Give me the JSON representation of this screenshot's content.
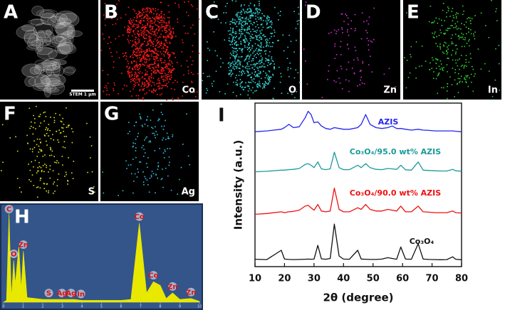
{
  "panels": [
    {
      "letter": "A",
      "label": "STEM 1 μm",
      "color": "#d0d0d0"
    },
    {
      "letter": "B",
      "label": "Co",
      "color": "#ff1a1a"
    },
    {
      "letter": "C",
      "label": "O",
      "color": "#33d0d0"
    },
    {
      "letter": "D",
      "label": "Zn",
      "color": "#d030d0"
    },
    {
      "letter": "E",
      "label": "In",
      "color": "#30d030"
    },
    {
      "letter": "F",
      "label": "S",
      "color": "#e0e020"
    },
    {
      "letter": "G",
      "label": "Ag",
      "color": "#30c0e0"
    }
  ],
  "chart_data": [
    {
      "type": "area",
      "title": "H",
      "color": "#e8e800",
      "x": [
        0,
        0.15,
        0.28,
        0.4,
        0.52,
        0.6,
        0.78,
        0.9,
        1.01,
        1.2,
        2.0,
        2.3,
        2.98,
        3.3,
        3.6,
        4.0,
        5.0,
        6.0,
        6.5,
        6.93,
        7.3,
        7.65,
        8.0,
        8.3,
        8.63,
        9.0,
        9.57,
        10
      ],
      "values": [
        0,
        2,
        95,
        5,
        45,
        20,
        60,
        15,
        55,
        5,
        3,
        3,
        3,
        3,
        3,
        2,
        2,
        2,
        3,
        85,
        10,
        22,
        18,
        4,
        10,
        3,
        4,
        1
      ],
      "xlim": [
        0,
        10
      ],
      "xticks": [
        0,
        1,
        2,
        3,
        4,
        5,
        6,
        7,
        8,
        9,
        10
      ],
      "ylim": [
        0,
        100
      ],
      "annotations": [
        {
          "text": "C",
          "x": 0.28
        },
        {
          "text": "O",
          "x": 0.52
        },
        {
          "text": "Zn",
          "x": 1.01
        },
        {
          "text": "S",
          "x": 2.31
        },
        {
          "text": "Ag",
          "x": 2.98
        },
        {
          "text": "Ag",
          "x": 3.45
        },
        {
          "text": "In",
          "x": 3.95
        },
        {
          "text": "Co",
          "x": 6.93
        },
        {
          "text": "Co",
          "x": 7.65
        },
        {
          "text": "Zn",
          "x": 8.63
        },
        {
          "text": "Zn",
          "x": 9.57
        }
      ]
    },
    {
      "type": "line",
      "title": "I",
      "xlabel": "2θ (degree)",
      "ylabel": "Intensity (a.u.)",
      "xlim": [
        10,
        80
      ],
      "xticks": [
        10,
        20,
        30,
        40,
        50,
        60,
        70,
        80
      ],
      "ylim": [
        0,
        100
      ],
      "x": [
        10,
        14,
        18.9,
        20,
        21.5,
        23,
        25,
        27,
        28,
        29,
        30,
        31.3,
        32.5,
        34,
        35.5,
        36.9,
        38.5,
        40,
        42,
        44.8,
        46,
        47.5,
        49,
        51,
        53,
        55,
        56.5,
        58,
        59.4,
        61,
        63,
        65.3,
        67,
        69,
        71,
        73,
        75,
        77,
        78,
        80
      ],
      "series": [
        {
          "name": "AZIS",
          "color": "#2424ee",
          "values": [
            82.5,
            83,
            84,
            85,
            87,
            85,
            85.5,
            91,
            95,
            93,
            88,
            88.5,
            86,
            84.5,
            84,
            85,
            84.5,
            84,
            84,
            85,
            87,
            93,
            87,
            85,
            84.5,
            85,
            86,
            84.5,
            84.5,
            84,
            83.5,
            84,
            83.5,
            83.3,
            83,
            83,
            83,
            83,
            82.8,
            82.5
          ]
        },
        {
          "name": "Co₃O₄/95.0 wt% AZIS",
          "color": "#1a9a9a",
          "values": [
            58,
            58.3,
            59,
            59,
            59.3,
            59.5,
            60,
            62.5,
            63,
            62,
            60.5,
            64,
            59.8,
            59.3,
            59.8,
            70,
            60.5,
            59.3,
            59.3,
            62,
            60.5,
            63,
            60.5,
            59.5,
            59.3,
            60,
            59.8,
            59.5,
            62,
            59.2,
            59,
            64,
            59,
            58.8,
            58.6,
            58.5,
            58.5,
            59.5,
            58.6,
            58.3
          ]
        },
        {
          "name": "Co₃O₄/90.0 wt% AZIS",
          "color": "#ee1111",
          "values": [
            32,
            32.5,
            33.5,
            33,
            33.5,
            33.8,
            34.5,
            37,
            37.5,
            36,
            34.5,
            38,
            34,
            33.5,
            34,
            48,
            35,
            33.5,
            33.5,
            36,
            35,
            38,
            35,
            34,
            34,
            35,
            34.5,
            34,
            37,
            33.5,
            33.5,
            37,
            33.5,
            33.3,
            33,
            33,
            33,
            34,
            33,
            32.8
          ]
        },
        {
          "name": "Co₃O₄",
          "color": "#111111",
          "values": [
            4.5,
            4.3,
            10,
            4.6,
            4.4,
            4.3,
            4.4,
            4.5,
            4.6,
            4.5,
            4.6,
            13,
            4.8,
            4.5,
            5,
            26,
            6.5,
            4.6,
            4.5,
            10,
            4.6,
            4.5,
            4.4,
            4.4,
            4.6,
            5.5,
            5,
            4.5,
            12,
            4.6,
            4.5,
            14,
            4.6,
            4.4,
            4.3,
            4.2,
            4.3,
            6,
            4.5,
            4.2
          ]
        }
      ]
    }
  ]
}
